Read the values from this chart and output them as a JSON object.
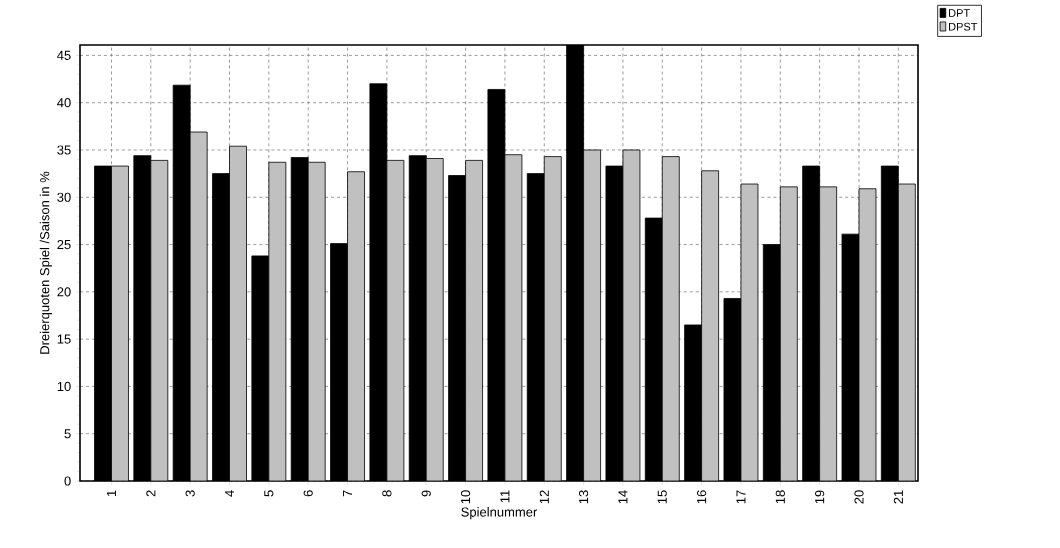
{
  "chart_data": {
    "type": "bar",
    "xlabel": "Spielnummer",
    "ylabel": "Dreierquoten Spiel /Saison in %",
    "categories": [
      "1",
      "2",
      "3",
      "4",
      "5",
      "6",
      "7",
      "8",
      "9",
      "10",
      "11",
      "12",
      "13",
      "14",
      "15",
      "16",
      "17",
      "18",
      "19",
      "20",
      "21"
    ],
    "series": [
      {
        "name": "DPT",
        "color": "#000000",
        "values": [
          33.3,
          34.4,
          41.85,
          32.5,
          23.8,
          34.2,
          25.1,
          42.0,
          34.4,
          32.3,
          41.4,
          32.5,
          46.1,
          33.3,
          27.8,
          16.5,
          19.3,
          25.0,
          33.3,
          26.1,
          33.3
        ]
      },
      {
        "name": "DPST",
        "color": "#c0c0c0",
        "values": [
          33.3,
          33.9,
          36.9,
          35.4,
          33.7,
          33.7,
          32.7,
          33.9,
          34.1,
          33.9,
          34.5,
          34.3,
          35.0,
          35.0,
          34.3,
          32.8,
          31.4,
          31.1,
          31.1,
          30.9,
          31.4
        ]
      }
    ],
    "ylim": [
      0,
      46.1
    ],
    "yticks": [
      0,
      5,
      10,
      15,
      20,
      25,
      30,
      35,
      40,
      45
    ],
    "grid": true,
    "legend": "top right"
  }
}
